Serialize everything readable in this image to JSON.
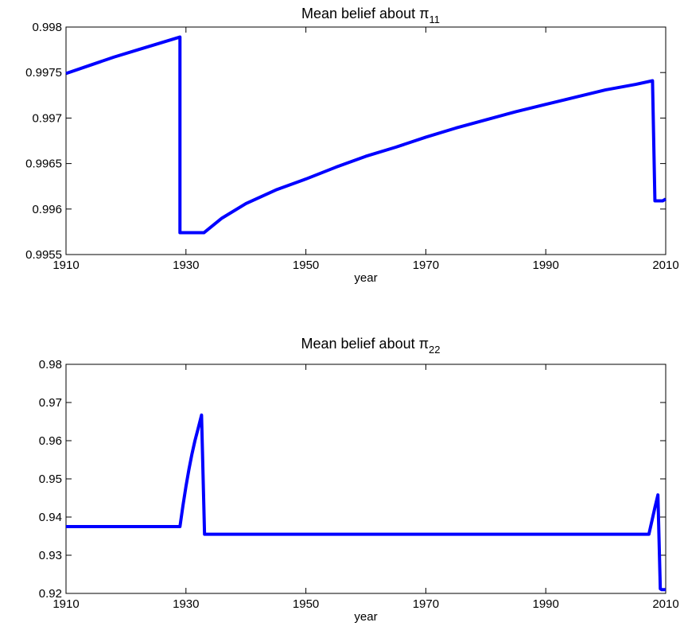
{
  "chart_data": [
    {
      "type": "line",
      "title": "Mean belief  about  π",
      "title_subscript": "11",
      "xlabel": "year",
      "ylabel": "",
      "xlim": [
        1910,
        2010
      ],
      "ylim": [
        0.9955,
        0.998
      ],
      "x_ticks": [
        1910,
        1930,
        1950,
        1970,
        1990,
        2010
      ],
      "x_tick_labels": [
        "1910",
        "1930",
        "1950",
        "1970",
        "1990",
        "2010"
      ],
      "y_ticks": [
        0.9955,
        0.996,
        0.9965,
        0.997,
        0.9975,
        0.998
      ],
      "y_tick_labels": [
        "0.9955",
        "0.996",
        "0.9965",
        "0.997",
        "0.9975",
        "0.998"
      ],
      "grid": false,
      "color": "#0000ff",
      "series": [
        {
          "x": [
            1910,
            1914,
            1918,
            1922,
            1926,
            1929,
            1929,
            1933,
            1936,
            1940,
            1945,
            1950,
            1955,
            1960,
            1965,
            1970,
            1975,
            1980,
            1985,
            1990,
            1995,
            2000,
            2005,
            2007.8,
            2008.2,
            2009.5,
            2010
          ],
          "y": [
            0.99749,
            0.99758,
            0.99767,
            0.99775,
            0.99783,
            0.99789,
            0.99574,
            0.99574,
            0.9959,
            0.99606,
            0.99621,
            0.99633,
            0.99646,
            0.99658,
            0.99668,
            0.99679,
            0.99689,
            0.99698,
            0.99707,
            0.99715,
            0.99723,
            0.99731,
            0.99737,
            0.99741,
            0.99609,
            0.99609,
            0.99611
          ]
        }
      ]
    },
    {
      "type": "line",
      "title": "Mean belief  about  π",
      "title_subscript": "22",
      "xlabel": "year",
      "ylabel": "",
      "xlim": [
        1910,
        2010
      ],
      "ylim": [
        0.92,
        0.98
      ],
      "x_ticks": [
        1910,
        1930,
        1950,
        1970,
        1990,
        2010
      ],
      "x_tick_labels": [
        "1910",
        "1930",
        "1950",
        "1970",
        "1990",
        "2010"
      ],
      "y_ticks": [
        0.92,
        0.93,
        0.94,
        0.95,
        0.96,
        0.97,
        0.98
      ],
      "y_tick_labels": [
        "0.92",
        "0.93",
        "0.94",
        "0.95",
        "0.96",
        "0.97",
        "0.98"
      ],
      "grid": false,
      "color": "#0000ff",
      "series": [
        {
          "x": [
            1910,
            1929,
            1929.5,
            1930,
            1930.5,
            1931,
            1931.5,
            1932,
            1932.6,
            1933.1,
            1940,
            1960,
            1980,
            2000,
            2007.2,
            2007.7,
            2008.2,
            2008.7,
            2009.1,
            2009.3,
            2010
          ],
          "y": [
            0.9375,
            0.9375,
            0.943,
            0.948,
            0.9525,
            0.9565,
            0.96,
            0.963,
            0.9667,
            0.9355,
            0.9355,
            0.9355,
            0.9355,
            0.9355,
            0.9355,
            0.939,
            0.9425,
            0.9458,
            0.9212,
            0.921,
            0.921
          ]
        }
      ]
    }
  ]
}
